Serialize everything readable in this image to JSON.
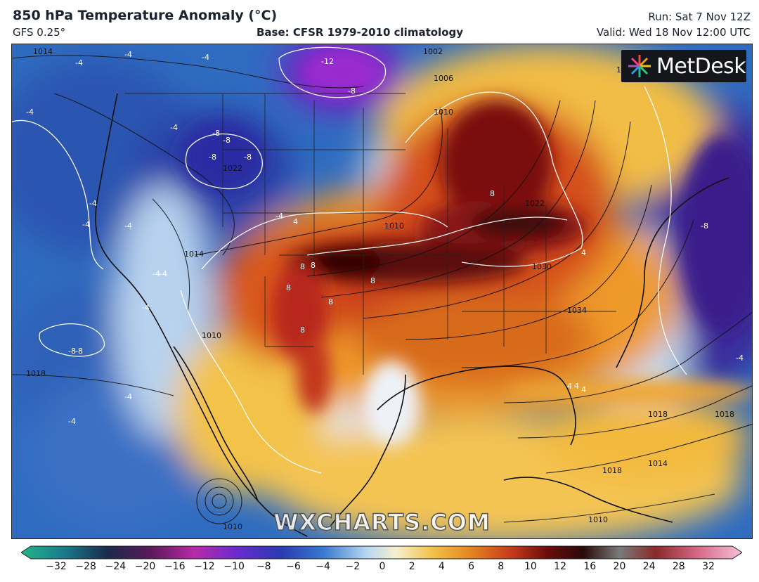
{
  "header": {
    "title": "850 hPa Temperature Anomaly (°C)",
    "model": "GFS 0.25°",
    "base": "Base: CFSR 1979-2010 climatology",
    "run": "Run: Sat 7 Nov 12Z",
    "valid": "Valid: Wed 18 Nov 12:00 UTC"
  },
  "logo": {
    "text": "MetDesk",
    "icon": "metdesk-starburst-icon"
  },
  "watermark": "WXCHARTS.COM",
  "colors": {
    "ocean_cold": "#2a62b8",
    "cold_deep": "#3a2a9a",
    "neutral": "#e9eef5",
    "warm_light": "#f3c24a",
    "warm": "#e07a1c",
    "hot": "#b8261a",
    "extreme": "#3a0a0a"
  },
  "colorbar": {
    "ticks": [
      "−32",
      "−28",
      "−24",
      "−20",
      "−16",
      "−12",
      "−10",
      "−8",
      "−6",
      "−4",
      "−2",
      "0",
      "2",
      "4",
      "6",
      "8",
      "10",
      "12",
      "16",
      "20",
      "24",
      "28",
      "32"
    ]
  },
  "isobar_labels": [
    "1014",
    "1018",
    "1018",
    "1022",
    "1022",
    "1014",
    "1010",
    "1010",
    "1002",
    "1006",
    "1010",
    "1022",
    "1030",
    "1034",
    "1018",
    "1018",
    "1014",
    "1010",
    "1010"
  ],
  "anomaly_labels": [
    "-4",
    "-4",
    "-4",
    "-12",
    "-8",
    "-4",
    "-8",
    "-8",
    "-8",
    "-8",
    "-4",
    "-4",
    "-4",
    "-4",
    "-4",
    "-8",
    "-4",
    "-4",
    "-8",
    "4",
    "8",
    "8",
    "8",
    "8",
    "8",
    "8",
    "8",
    "4",
    "4",
    "-4",
    "-4",
    "-4",
    "-8",
    "4",
    "4",
    "-4"
  ]
}
